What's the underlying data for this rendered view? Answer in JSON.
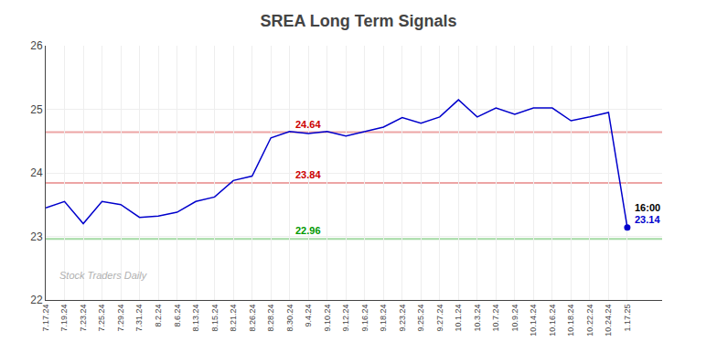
{
  "chart_data": {
    "type": "line",
    "title": "SREA Long Term Signals",
    "categories": [
      "7.17.24",
      "7.19.24",
      "7.23.24",
      "7.25.24",
      "7.29.24",
      "7.31.24",
      "8.2.24",
      "8.6.24",
      "8.13.24",
      "8.15.24",
      "8.21.24",
      "8.26.24",
      "8.28.24",
      "8.30.24",
      "9.4.24",
      "9.10.24",
      "9.12.24",
      "9.16.24",
      "9.18.24",
      "9.23.24",
      "9.25.24",
      "9.27.24",
      "10.1.24",
      "10.3.24",
      "10.7.24",
      "10.9.24",
      "10.14.24",
      "10.16.24",
      "10.18.24",
      "10.22.24",
      "10.24.24",
      "1.17.25"
    ],
    "values": [
      23.45,
      23.55,
      23.2,
      23.55,
      23.5,
      23.3,
      23.32,
      23.38,
      23.55,
      23.62,
      23.88,
      23.95,
      24.55,
      24.65,
      24.62,
      24.65,
      24.58,
      24.65,
      24.72,
      24.87,
      24.78,
      24.88,
      25.15,
      24.88,
      25.02,
      24.92,
      25.02,
      25.02,
      24.82,
      24.88,
      24.95,
      23.14
    ],
    "color": "#0000cc",
    "hlines": [
      {
        "value": 24.64,
        "color": "#cc0000"
      },
      {
        "value": 23.84,
        "color": "#cc0000"
      },
      {
        "value": 22.96,
        "color": "#009900"
      }
    ],
    "last_point_labels": [
      "16:00",
      "23.14"
    ],
    "watermark": "Stock Traders Daily",
    "ylim": [
      22.0,
      26.0
    ],
    "yticks": [
      22,
      23,
      24,
      25,
      26
    ],
    "grid": true
  }
}
